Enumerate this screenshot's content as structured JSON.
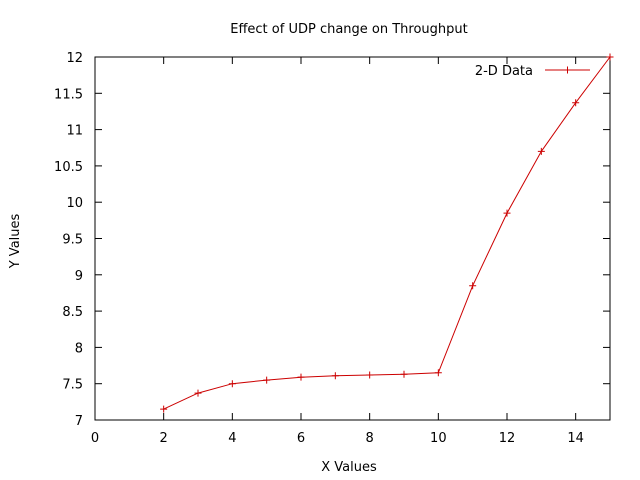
{
  "chart_data": {
    "type": "line",
    "title": "Effect of UDP change on Throughput",
    "xlabel": "X Values",
    "ylabel": "Y Values",
    "xlim": [
      0,
      15
    ],
    "ylim": [
      7,
      12
    ],
    "xticks": [
      0,
      2,
      4,
      6,
      8,
      10,
      12,
      14
    ],
    "yticks": [
      7,
      7.5,
      8,
      8.5,
      9,
      9.5,
      10,
      10.5,
      11,
      11.5,
      12
    ],
    "grid": false,
    "legend_position": "top-right",
    "series": [
      {
        "name": "2-D Data",
        "color": "#cc0000",
        "marker": "plus",
        "x": [
          2,
          3,
          4,
          5,
          6,
          7,
          8,
          9,
          10,
          11,
          12,
          13,
          14,
          15
        ],
        "y": [
          7.15,
          7.37,
          7.5,
          7.55,
          7.59,
          7.61,
          7.62,
          7.63,
          7.65,
          8.85,
          9.85,
          10.7,
          11.37,
          12.0
        ]
      }
    ]
  }
}
